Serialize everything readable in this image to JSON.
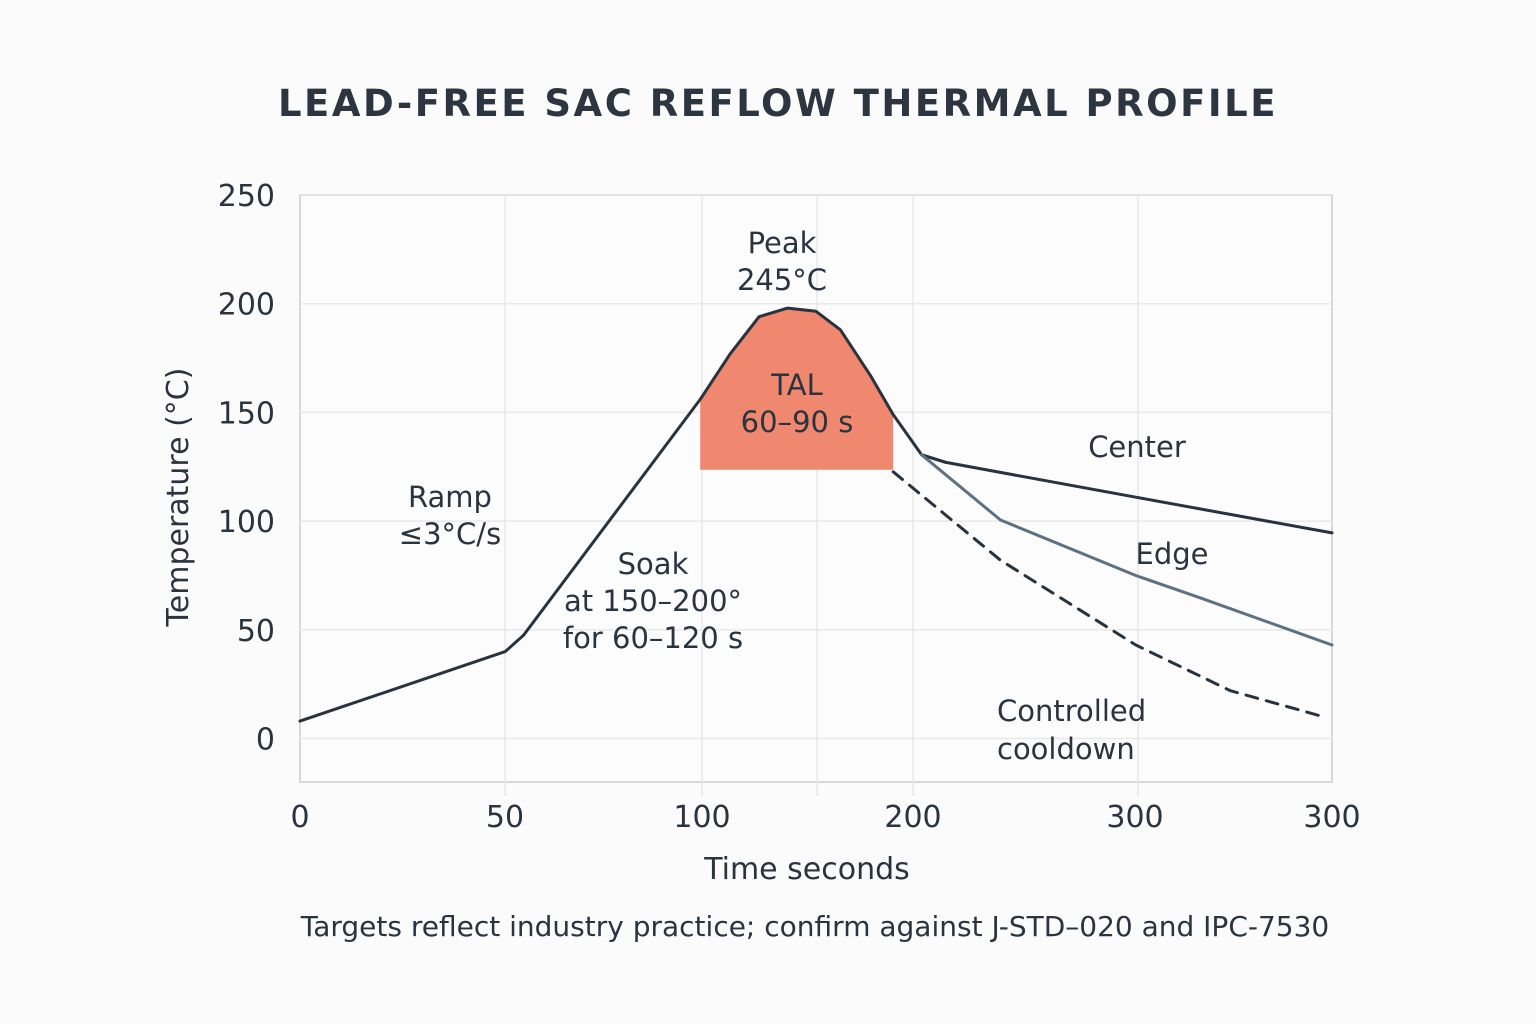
{
  "chart_data": {
    "type": "line",
    "title": "LEAD-FREE SAC REFLOW THERMAL PROFILE",
    "xlabel": "Time seconds",
    "ylabel": "Temperature (°C)",
    "x_tick_labels": [
      "0",
      "50",
      "100",
      "200",
      "300",
      "300"
    ],
    "y_tick_labels": [
      "250",
      "200",
      "150",
      "100",
      "50",
      "0"
    ],
    "y_ticks": [
      250,
      200,
      150,
      100,
      50,
      0
    ],
    "xlim": [
      0,
      254
    ],
    "ylim": [
      -20,
      250
    ],
    "grid": true,
    "series": [
      {
        "key": "profile",
        "color": "#28333f",
        "style": "solid",
        "points": [
          [
            0,
            8
          ],
          [
            50.5,
            40
          ],
          [
            55,
            47.5
          ],
          [
            98.5,
            156
          ],
          [
            105.9,
            177
          ],
          [
            113,
            194
          ],
          [
            120,
            198
          ],
          [
            127,
            196.5
          ],
          [
            133,
            188
          ],
          [
            140.4,
            167
          ],
          [
            146,
            149
          ],
          [
            153,
            130.5
          ],
          [
            159,
            127
          ]
        ]
      },
      {
        "name": "Center",
        "color": "#28333f",
        "style": "solid",
        "points": [
          [
            153,
            130.5
          ],
          [
            159,
            127
          ],
          [
            205.7,
            111
          ],
          [
            254,
            94.6
          ]
        ]
      },
      {
        "name": "Edge",
        "color": "#5d7183",
        "style": "solid",
        "points": [
          [
            153,
            130.5
          ],
          [
            172.4,
            100.5
          ],
          [
            205.7,
            75
          ],
          [
            221.7,
            64.6
          ],
          [
            254,
            43
          ]
        ]
      },
      {
        "key": "cooldown",
        "color": "#28333f",
        "style": "dashed",
        "points": [
          [
            146,
            122.7
          ],
          [
            172.4,
            82
          ],
          [
            205.7,
            43
          ],
          [
            229,
            22
          ],
          [
            252.5,
            9.7
          ]
        ]
      }
    ],
    "tal_region": {
      "x_range": [
        98.5,
        146
      ],
      "y_min": 123.6,
      "color": "#f0876f"
    },
    "annotations": {
      "peak": [
        "Peak",
        "245°C"
      ],
      "tal": [
        "TAL",
        "60–90 s"
      ],
      "ramp": [
        "Ramp",
        "≤3°C/s"
      ],
      "soak": [
        "Soak",
        "at 150–200°",
        "for 60–120 s"
      ],
      "center": "Center",
      "edge": "Edge",
      "cooldown": [
        "Controlled",
        "cooldown"
      ]
    },
    "footnote": "Targets reflect industry practice; confirm against J-STD–020 and IPC-7530"
  }
}
